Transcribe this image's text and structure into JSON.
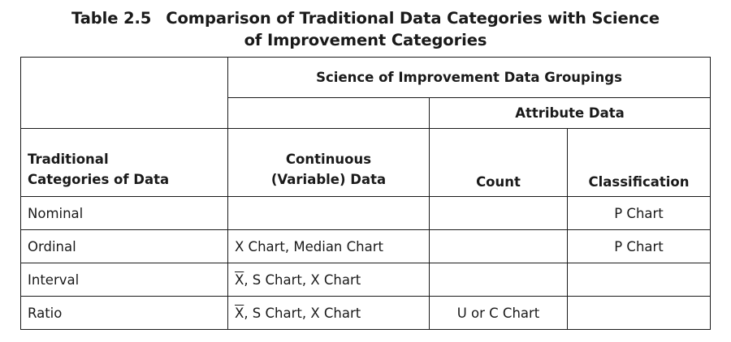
{
  "title": {
    "number": "Table 2.5",
    "line1": "Comparison of Traditional Data Categories with Science",
    "line2": "of Improvement Categories"
  },
  "header": {
    "groupings": "Science of Improvement Data Groupings",
    "attribute_data": "Attribute Data",
    "traditional_line1": "Traditional",
    "traditional_line2": "Categories of Data",
    "continuous_line1": "Continuous",
    "continuous_line2": "(Variable) Data",
    "count": "Count",
    "classification": "Classification"
  },
  "rows": [
    {
      "category": "Nominal",
      "continuous": "",
      "continuous_xbar": "",
      "count": "",
      "classification": "P Chart"
    },
    {
      "category": "Ordinal",
      "continuous": "X Chart, Median Chart",
      "continuous_xbar": "",
      "count": "",
      "classification": "P Chart"
    },
    {
      "category": "Interval",
      "continuous": ", S Chart, X Chart",
      "continuous_xbar": "X",
      "count": "",
      "classification": ""
    },
    {
      "category": "Ratio",
      "continuous": ", S Chart, X Chart",
      "continuous_xbar": "X",
      "count": "U or C Chart",
      "classification": ""
    }
  ]
}
